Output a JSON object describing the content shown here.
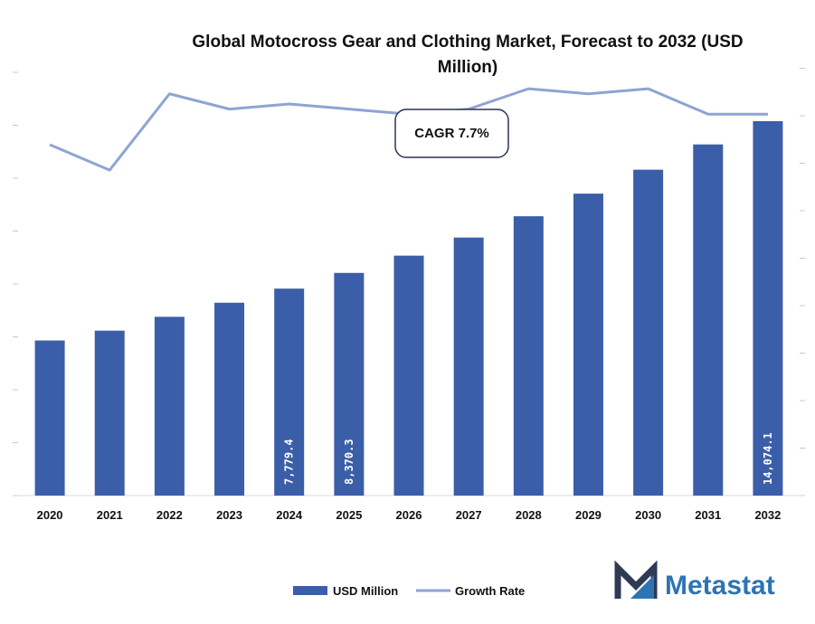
{
  "chart_data": {
    "type": "bar",
    "title_line1": "Global Motocross Gear and Clothing Market, Forecast to 2032 (USD",
    "title_line2": "Million)",
    "categories": [
      "2020",
      "2021",
      "2022",
      "2023",
      "2024",
      "2025",
      "2026",
      "2027",
      "2028",
      "2029",
      "2030",
      "2031",
      "2032"
    ],
    "series": [
      {
        "name": "USD Million",
        "type": "bar",
        "values": [
          5830,
          6200,
          6720,
          7250,
          7779.4,
          8370.3,
          9020,
          9700,
          10500,
          11350,
          12250,
          13200,
          14074.1
        ],
        "labels": [
          "",
          "",
          "",
          "",
          "7,779.4",
          "8,370.3",
          "",
          "",
          "",
          "",
          "",
          "",
          "14,074.1"
        ],
        "color": "#3b5ea8"
      },
      {
        "name": "Growth Rate",
        "type": "line",
        "values": [
          6.9,
          6.4,
          7.9,
          7.6,
          7.7,
          7.6,
          7.5,
          7.6,
          8.0,
          7.9,
          8.0,
          7.5,
          7.5
        ],
        "color": "#8fa3d4"
      }
    ],
    "ylim_bar": [
      0,
      14074.1
    ],
    "ylim_line": [
      0,
      8.5
    ],
    "annotation": "CAGR 7.7%",
    "legend_position": "bottom-center",
    "grid": false
  },
  "brand": {
    "name": "Metastat"
  }
}
